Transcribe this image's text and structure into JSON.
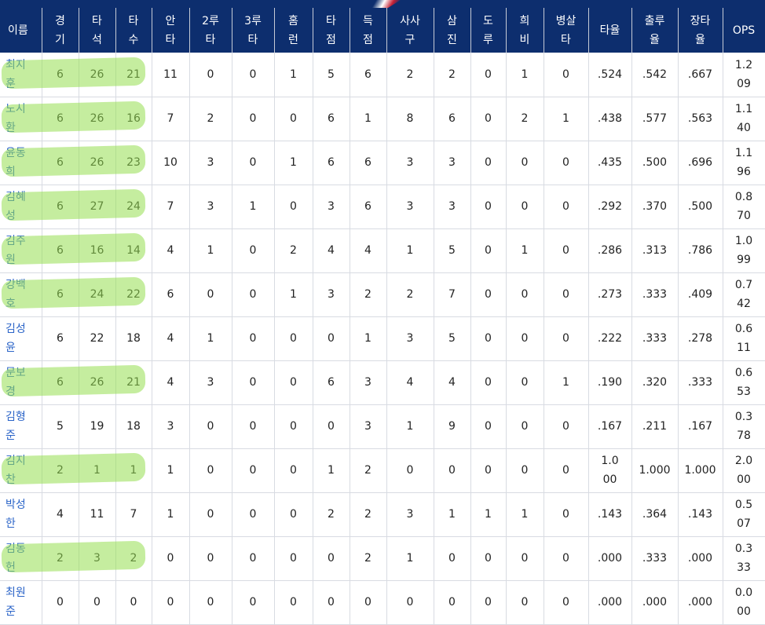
{
  "headers": [
    [
      "이름"
    ],
    [
      "경",
      "기"
    ],
    [
      "타",
      "석"
    ],
    [
      "타",
      "수"
    ],
    [
      "안",
      "타"
    ],
    [
      "2루",
      "타"
    ],
    [
      "3루",
      "타"
    ],
    [
      "홈",
      "런"
    ],
    [
      "타",
      "점"
    ],
    [
      "득",
      "점"
    ],
    [
      "사사",
      "구"
    ],
    [
      "삼",
      "진"
    ],
    [
      "도",
      "루"
    ],
    [
      "희",
      "비"
    ],
    [
      "병살",
      "타"
    ],
    [
      "타율"
    ],
    [
      "출루",
      "율"
    ],
    [
      "장타",
      "율"
    ],
    [
      "OPS"
    ]
  ],
  "rows": [
    {
      "name": "최지훈",
      "g": "6",
      "pa": "26",
      "ab": "21",
      "h": "11",
      "d": "0",
      "t": "0",
      "hr": "1",
      "rbi": "5",
      "r": "6",
      "bb": "2",
      "so": "2",
      "sb": "0",
      "sf": "1",
      "gdp": "0",
      "avg": ".524",
      "obp": ".542",
      "slg": ".667",
      "ops": "1.209"
    },
    {
      "name": "노시환",
      "g": "6",
      "pa": "26",
      "ab": "16",
      "h": "7",
      "d": "2",
      "t": "0",
      "hr": "0",
      "rbi": "6",
      "r": "1",
      "bb": "8",
      "so": "6",
      "sb": "0",
      "sf": "2",
      "gdp": "1",
      "avg": ".438",
      "obp": ".577",
      "slg": ".563",
      "ops": "1.140"
    },
    {
      "name": "윤동희",
      "g": "6",
      "pa": "26",
      "ab": "23",
      "h": "10",
      "d": "3",
      "t": "0",
      "hr": "1",
      "rbi": "6",
      "r": "6",
      "bb": "3",
      "so": "3",
      "sb": "0",
      "sf": "0",
      "gdp": "0",
      "avg": ".435",
      "obp": ".500",
      "slg": ".696",
      "ops": "1.196"
    },
    {
      "name": "김혜성",
      "g": "6",
      "pa": "27",
      "ab": "24",
      "h": "7",
      "d": "3",
      "t": "1",
      "hr": "0",
      "rbi": "3",
      "r": "6",
      "bb": "3",
      "so": "3",
      "sb": "0",
      "sf": "0",
      "gdp": "0",
      "avg": ".292",
      "obp": ".370",
      "slg": ".500",
      "ops": "0.870"
    },
    {
      "name": "김주원",
      "g": "6",
      "pa": "16",
      "ab": "14",
      "h": "4",
      "d": "1",
      "t": "0",
      "hr": "2",
      "rbi": "4",
      "r": "4",
      "bb": "1",
      "so": "5",
      "sb": "0",
      "sf": "1",
      "gdp": "0",
      "avg": ".286",
      "obp": ".313",
      "slg": ".786",
      "ops": "1.099"
    },
    {
      "name": "강백호",
      "g": "6",
      "pa": "24",
      "ab": "22",
      "h": "6",
      "d": "0",
      "t": "0",
      "hr": "1",
      "rbi": "3",
      "r": "2",
      "bb": "2",
      "so": "7",
      "sb": "0",
      "sf": "0",
      "gdp": "0",
      "avg": ".273",
      "obp": ".333",
      "slg": ".409",
      "ops": "0.742"
    },
    {
      "name": "김성윤",
      "g": "6",
      "pa": "22",
      "ab": "18",
      "h": "4",
      "d": "1",
      "t": "0",
      "hr": "0",
      "rbi": "0",
      "r": "1",
      "bb": "3",
      "so": "5",
      "sb": "0",
      "sf": "0",
      "gdp": "0",
      "avg": ".222",
      "obp": ".333",
      "slg": ".278",
      "ops": "0.611"
    },
    {
      "name": "문보경",
      "g": "6",
      "pa": "26",
      "ab": "21",
      "h": "4",
      "d": "3",
      "t": "0",
      "hr": "0",
      "rbi": "6",
      "r": "3",
      "bb": "4",
      "so": "4",
      "sb": "0",
      "sf": "0",
      "gdp": "1",
      "avg": ".190",
      "obp": ".320",
      "slg": ".333",
      "ops": "0.653"
    },
    {
      "name": "김형준",
      "g": "5",
      "pa": "19",
      "ab": "18",
      "h": "3",
      "d": "0",
      "t": "0",
      "hr": "0",
      "rbi": "0",
      "r": "3",
      "bb": "1",
      "so": "9",
      "sb": "0",
      "sf": "0",
      "gdp": "0",
      "avg": ".167",
      "obp": ".211",
      "slg": ".167",
      "ops": "0.378"
    },
    {
      "name": "김지찬",
      "g": "2",
      "pa": "1",
      "ab": "1",
      "h": "1",
      "d": "0",
      "t": "0",
      "hr": "0",
      "rbi": "1",
      "r": "2",
      "bb": "0",
      "so": "0",
      "sb": "0",
      "sf": "0",
      "gdp": "0",
      "avg": "1.000",
      "obp": "1.000",
      "slg": "1.000",
      "ops": "2.000"
    },
    {
      "name": "박성한",
      "g": "4",
      "pa": "11",
      "ab": "7",
      "h": "1",
      "d": "0",
      "t": "0",
      "hr": "0",
      "rbi": "2",
      "r": "2",
      "bb": "3",
      "so": "1",
      "sb": "1",
      "sf": "1",
      "gdp": "0",
      "avg": ".143",
      "obp": ".364",
      "slg": ".143",
      "ops": "0.507"
    },
    {
      "name": "김동헌",
      "g": "2",
      "pa": "3",
      "ab": "2",
      "h": "0",
      "d": "0",
      "t": "0",
      "hr": "0",
      "rbi": "0",
      "r": "2",
      "bb": "1",
      "so": "0",
      "sb": "0",
      "sf": "0",
      "gdp": "0",
      "avg": ".000",
      "obp": ".333",
      "slg": ".000",
      "ops": "0.333"
    },
    {
      "name": "최원준",
      "g": "0",
      "pa": "0",
      "ab": "0",
      "h": "0",
      "d": "0",
      "t": "0",
      "hr": "0",
      "rbi": "0",
      "r": "0",
      "bb": "0",
      "so": "0",
      "sb": "0",
      "sf": "0",
      "gdp": "0",
      "avg": ".000",
      "obp": ".000",
      "slg": ".000",
      "ops": "0.000"
    }
  ],
  "highlights": [
    true,
    true,
    true,
    true,
    true,
    true,
    false,
    true,
    false,
    true,
    false,
    true,
    false
  ],
  "colors": {
    "header_bg": "#0d2e6e",
    "name_link": "#2b64c8",
    "highlight": "#96de50"
  }
}
